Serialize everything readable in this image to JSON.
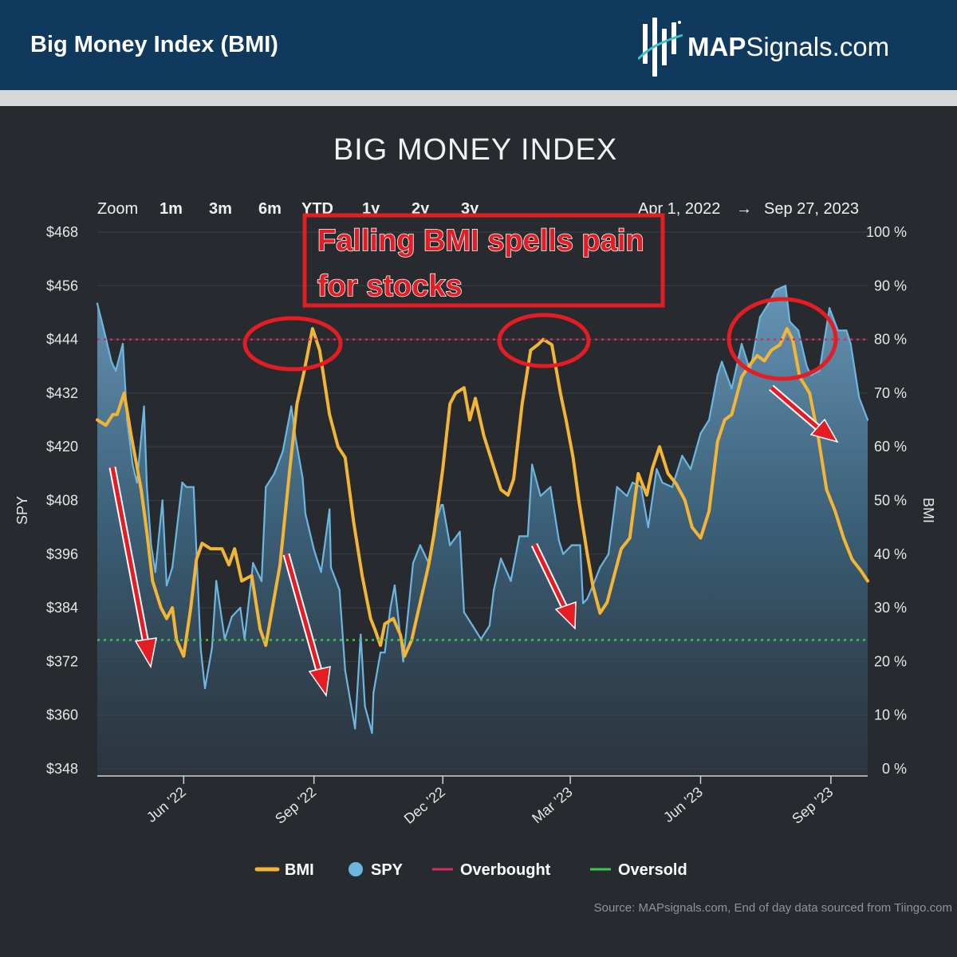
{
  "header": {
    "title": "Big Money Index (BMI)",
    "brand_bold": "MAP",
    "brand_rest": "Signals.com"
  },
  "colors": {
    "header_bg": "#10395e",
    "bmi": "#f2b535",
    "spy": "#6cb6e0",
    "overbought": "#d92b5c",
    "oversold": "#3bc94a",
    "annotation": "#e31d23"
  },
  "zoom": {
    "label": "Zoom",
    "options": [
      "1m",
      "3m",
      "6m",
      "YTD",
      "1y",
      "2y",
      "3y"
    ],
    "range_start": "Apr 1, 2022",
    "range_arrow": "→",
    "range_end": "Sep 27, 2023"
  },
  "annotation": {
    "line1": "Falling BMI spells pain",
    "line2": "for stocks"
  },
  "source": "Source: MAPsignals.com, End of day data sourced from Tiingo.com",
  "chart_data": {
    "type": "line",
    "title": "BIG MONEY INDEX",
    "x_range": [
      "2022-04-01",
      "2023-09-27"
    ],
    "x_ticks": [
      "Jun '22",
      "Sep '22",
      "Dec '22",
      "Mar '23",
      "Jun '23",
      "Sep '23"
    ],
    "x_tick_dates": [
      "2022-06-01",
      "2022-09-01",
      "2022-12-01",
      "2023-03-01",
      "2023-06-01",
      "2023-09-01"
    ],
    "y_left": {
      "label": "SPY",
      "range": [
        348,
        468
      ],
      "ticks": [
        "$468",
        "$456",
        "$444",
        "$432",
        "$420",
        "$408",
        "$396",
        "$384",
        "$372",
        "$360",
        "$348"
      ]
    },
    "y_right": {
      "label": "BMI",
      "range": [
        0,
        100
      ],
      "ticks": [
        "100 %",
        "90 %",
        "80 %",
        "70 %",
        "60 %",
        "50 %",
        "40 %",
        "30 %",
        "20 %",
        "10 %",
        "0 %"
      ]
    },
    "thresholds": {
      "overbought": 80,
      "oversold": 24
    },
    "legend": [
      "BMI",
      "SPY",
      "Overbought",
      "Oversold"
    ],
    "series": [
      {
        "name": "SPY",
        "axis": "left",
        "points": [
          [
            "2022-04-01",
            452
          ],
          [
            "2022-04-05",
            447
          ],
          [
            "2022-04-11",
            439
          ],
          [
            "2022-04-14",
            437
          ],
          [
            "2022-04-19",
            443
          ],
          [
            "2022-04-22",
            426
          ],
          [
            "2022-04-26",
            416
          ],
          [
            "2022-04-29",
            412
          ],
          [
            "2022-05-04",
            429
          ],
          [
            "2022-05-06",
            411
          ],
          [
            "2022-05-09",
            398
          ],
          [
            "2022-05-12",
            392
          ],
          [
            "2022-05-17",
            408
          ],
          [
            "2022-05-20",
            389
          ],
          [
            "2022-05-24",
            393
          ],
          [
            "2022-05-31",
            412
          ],
          [
            "2022-06-03",
            411
          ],
          [
            "2022-06-08",
            411
          ],
          [
            "2022-06-13",
            375
          ],
          [
            "2022-06-16",
            366
          ],
          [
            "2022-06-21",
            375
          ],
          [
            "2022-06-24",
            390
          ],
          [
            "2022-06-30",
            377
          ],
          [
            "2022-07-05",
            382
          ],
          [
            "2022-07-11",
            384
          ],
          [
            "2022-07-14",
            377
          ],
          [
            "2022-07-20",
            394
          ],
          [
            "2022-07-26",
            390
          ],
          [
            "2022-07-29",
            411
          ],
          [
            "2022-08-04",
            414
          ],
          [
            "2022-08-10",
            419
          ],
          [
            "2022-08-16",
            429
          ],
          [
            "2022-08-19",
            422
          ],
          [
            "2022-08-24",
            413
          ],
          [
            "2022-08-26",
            405
          ],
          [
            "2022-09-01",
            397
          ],
          [
            "2022-09-06",
            392
          ],
          [
            "2022-09-12",
            406
          ],
          [
            "2022-09-13",
            393
          ],
          [
            "2022-09-19",
            388
          ],
          [
            "2022-09-23",
            370
          ],
          [
            "2022-09-30",
            357
          ],
          [
            "2022-10-04",
            378
          ],
          [
            "2022-10-07",
            362
          ],
          [
            "2022-10-12",
            356
          ],
          [
            "2022-10-13",
            365
          ],
          [
            "2022-10-18",
            374
          ],
          [
            "2022-10-21",
            374
          ],
          [
            "2022-10-25",
            384
          ],
          [
            "2022-10-28",
            389
          ],
          [
            "2022-11-03",
            372
          ],
          [
            "2022-11-10",
            394
          ],
          [
            "2022-11-15",
            398
          ],
          [
            "2022-11-21",
            394
          ],
          [
            "2022-11-25",
            402
          ],
          [
            "2022-11-30",
            407
          ],
          [
            "2022-12-01",
            407
          ],
          [
            "2022-12-06",
            398
          ],
          [
            "2022-12-13",
            401
          ],
          [
            "2022-12-16",
            383
          ],
          [
            "2022-12-22",
            380
          ],
          [
            "2022-12-28",
            377
          ],
          [
            "2023-01-03",
            380
          ],
          [
            "2023-01-06",
            388
          ],
          [
            "2023-01-11",
            395
          ],
          [
            "2023-01-18",
            390
          ],
          [
            "2023-01-24",
            400
          ],
          [
            "2023-01-30",
            400
          ],
          [
            "2023-02-02",
            416
          ],
          [
            "2023-02-08",
            409
          ],
          [
            "2023-02-15",
            411
          ],
          [
            "2023-02-21",
            399
          ],
          [
            "2023-02-24",
            396
          ],
          [
            "2023-03-02",
            398
          ],
          [
            "2023-03-08",
            398
          ],
          [
            "2023-03-10",
            385
          ],
          [
            "2023-03-13",
            386
          ],
          [
            "2023-03-17",
            389
          ],
          [
            "2023-03-22",
            393
          ],
          [
            "2023-03-28",
            396
          ],
          [
            "2023-04-03",
            411
          ],
          [
            "2023-04-10",
            409
          ],
          [
            "2023-04-14",
            412
          ],
          [
            "2023-04-20",
            411
          ],
          [
            "2023-04-25",
            402
          ],
          [
            "2023-05-01",
            415
          ],
          [
            "2023-05-05",
            412
          ],
          [
            "2023-05-12",
            411
          ],
          [
            "2023-05-19",
            418
          ],
          [
            "2023-05-25",
            415
          ],
          [
            "2023-06-01",
            423
          ],
          [
            "2023-06-07",
            426
          ],
          [
            "2023-06-13",
            436
          ],
          [
            "2023-06-16",
            439
          ],
          [
            "2023-06-23",
            433
          ],
          [
            "2023-06-30",
            443
          ],
          [
            "2023-07-06",
            437
          ],
          [
            "2023-07-13",
            449
          ],
          [
            "2023-07-19",
            452
          ],
          [
            "2023-07-24",
            455
          ],
          [
            "2023-07-31",
            456
          ],
          [
            "2023-08-03",
            448
          ],
          [
            "2023-08-09",
            446
          ],
          [
            "2023-08-15",
            438
          ],
          [
            "2023-08-18",
            436
          ],
          [
            "2023-08-24",
            437
          ],
          [
            "2023-08-31",
            451
          ],
          [
            "2023-09-06",
            446
          ],
          [
            "2023-09-12",
            446
          ],
          [
            "2023-09-15",
            443
          ],
          [
            "2023-09-21",
            431
          ],
          [
            "2023-09-27",
            426
          ]
        ]
      },
      {
        "name": "BMI",
        "axis": "right",
        "points": [
          [
            "2022-04-01",
            65
          ],
          [
            "2022-04-07",
            64
          ],
          [
            "2022-04-12",
            66
          ],
          [
            "2022-04-15",
            66
          ],
          [
            "2022-04-20",
            70
          ],
          [
            "2022-04-25",
            62
          ],
          [
            "2022-05-02",
            52
          ],
          [
            "2022-05-06",
            44
          ],
          [
            "2022-05-10",
            35
          ],
          [
            "2022-05-16",
            30
          ],
          [
            "2022-05-20",
            28
          ],
          [
            "2022-05-24",
            30
          ],
          [
            "2022-05-27",
            24
          ],
          [
            "2022-06-01",
            21
          ],
          [
            "2022-06-06",
            30
          ],
          [
            "2022-06-10",
            39
          ],
          [
            "2022-06-14",
            42
          ],
          [
            "2022-06-20",
            41
          ],
          [
            "2022-06-28",
            41
          ],
          [
            "2022-07-03",
            38
          ],
          [
            "2022-07-07",
            41
          ],
          [
            "2022-07-12",
            35
          ],
          [
            "2022-07-19",
            36
          ],
          [
            "2022-07-25",
            26
          ],
          [
            "2022-07-29",
            23
          ],
          [
            "2022-08-02",
            29
          ],
          [
            "2022-08-08",
            38
          ],
          [
            "2022-08-15",
            56
          ],
          [
            "2022-08-20",
            68
          ],
          [
            "2022-08-25",
            74
          ],
          [
            "2022-08-31",
            82
          ],
          [
            "2022-09-05",
            78
          ],
          [
            "2022-09-12",
            66
          ],
          [
            "2022-09-18",
            60
          ],
          [
            "2022-09-23",
            58
          ],
          [
            "2022-09-29",
            46
          ],
          [
            "2022-10-05",
            36
          ],
          [
            "2022-10-11",
            28
          ],
          [
            "2022-10-14",
            26
          ],
          [
            "2022-10-18",
            23
          ],
          [
            "2022-10-21",
            27
          ],
          [
            "2022-10-27",
            28
          ],
          [
            "2022-11-01",
            25
          ],
          [
            "2022-11-04",
            21
          ],
          [
            "2022-11-09",
            24
          ],
          [
            "2022-11-15",
            31
          ],
          [
            "2022-11-21",
            38
          ],
          [
            "2022-11-25",
            44
          ],
          [
            "2022-12-01",
            56
          ],
          [
            "2022-12-06",
            68
          ],
          [
            "2022-12-10",
            70
          ],
          [
            "2022-12-16",
            71
          ],
          [
            "2022-12-20",
            65
          ],
          [
            "2022-12-24",
            69
          ],
          [
            "2022-12-30",
            62
          ],
          [
            "2023-01-05",
            57
          ],
          [
            "2023-01-11",
            52
          ],
          [
            "2023-01-16",
            51
          ],
          [
            "2023-01-20",
            54
          ],
          [
            "2023-01-26",
            68
          ],
          [
            "2023-02-01",
            78
          ],
          [
            "2023-02-06",
            79
          ],
          [
            "2023-02-10",
            80
          ],
          [
            "2023-02-16",
            79
          ],
          [
            "2023-02-22",
            70
          ],
          [
            "2023-02-26",
            65
          ],
          [
            "2023-03-03",
            58
          ],
          [
            "2023-03-07",
            50
          ],
          [
            "2023-03-13",
            40
          ],
          [
            "2023-03-17",
            34
          ],
          [
            "2023-03-22",
            29
          ],
          [
            "2023-03-27",
            31
          ],
          [
            "2023-04-01",
            36
          ],
          [
            "2023-04-06",
            41
          ],
          [
            "2023-04-12",
            43
          ],
          [
            "2023-04-18",
            55
          ],
          [
            "2023-04-24",
            51
          ],
          [
            "2023-04-28",
            56
          ],
          [
            "2023-05-03",
            60
          ],
          [
            "2023-05-09",
            55
          ],
          [
            "2023-05-15",
            53
          ],
          [
            "2023-05-21",
            50
          ],
          [
            "2023-05-26",
            45
          ],
          [
            "2023-06-01",
            43
          ],
          [
            "2023-06-07",
            48
          ],
          [
            "2023-06-13",
            61
          ],
          [
            "2023-06-18",
            65
          ],
          [
            "2023-06-23",
            66
          ],
          [
            "2023-06-30",
            73
          ],
          [
            "2023-07-05",
            75
          ],
          [
            "2023-07-11",
            77
          ],
          [
            "2023-07-16",
            76
          ],
          [
            "2023-07-21",
            78
          ],
          [
            "2023-07-27",
            79
          ],
          [
            "2023-08-01",
            82
          ],
          [
            "2023-08-05",
            80
          ],
          [
            "2023-08-10",
            73
          ],
          [
            "2023-08-17",
            70
          ],
          [
            "2023-08-23",
            62
          ],
          [
            "2023-08-29",
            52
          ],
          [
            "2023-09-04",
            48
          ],
          [
            "2023-09-10",
            43
          ],
          [
            "2023-09-16",
            39
          ],
          [
            "2023-09-22",
            37
          ],
          [
            "2023-09-27",
            35
          ]
        ]
      }
    ]
  }
}
